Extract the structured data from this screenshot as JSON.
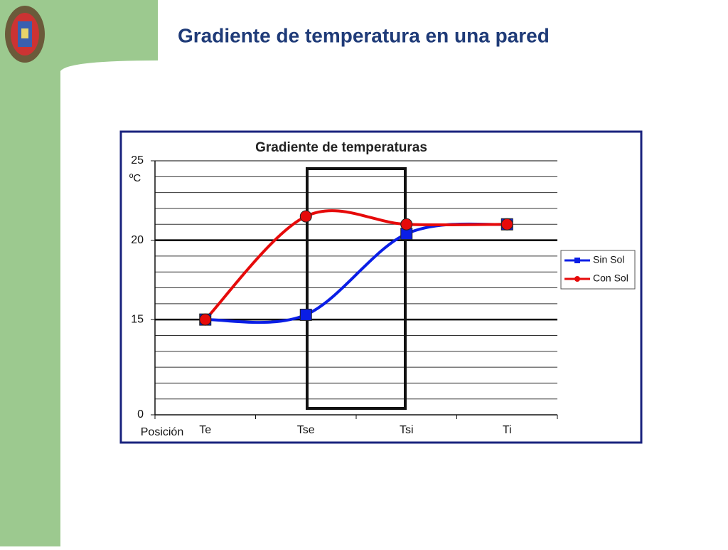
{
  "slide": {
    "title": "Gradiente de temperatura en una pared"
  },
  "chart_data": {
    "type": "line",
    "title": "Gradiente de temperaturas",
    "x_label": "Posición",
    "y_label": "ºC",
    "categories": [
      "Te",
      "Tse",
      "Tsi",
      "Ti"
    ],
    "series": [
      {
        "name": "Sin Sol",
        "color": "#0a1ee6",
        "marker": "square",
        "values": [
          15,
          15.3,
          20.4,
          21
        ]
      },
      {
        "name": "Con Sol",
        "color": "#e60a0a",
        "marker": "circle",
        "values": [
          15,
          21.5,
          21,
          21
        ]
      }
    ],
    "ylim": [
      0,
      25
    ],
    "yticks": [
      0,
      15,
      20,
      25
    ],
    "y_break": [
      0,
      9
    ],
    "minor_grid_step": 1,
    "grid": true,
    "legend": "right",
    "smooth": true
  }
}
